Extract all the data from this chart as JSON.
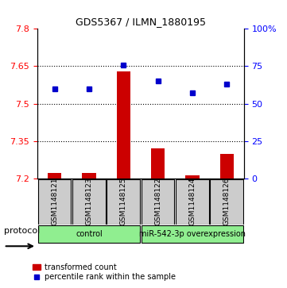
{
  "title": "GDS5367 / ILMN_1880195",
  "samples": [
    "GSM1148121",
    "GSM1148123",
    "GSM1148125",
    "GSM1148122",
    "GSM1148124",
    "GSM1148126"
  ],
  "red_values": [
    7.222,
    7.223,
    7.63,
    7.32,
    7.213,
    7.298
  ],
  "blue_values": [
    60,
    60,
    76,
    65,
    57,
    63
  ],
  "ylim_left": [
    7.2,
    7.8
  ],
  "ylim_right": [
    0,
    100
  ],
  "yticks_left": [
    7.2,
    7.35,
    7.5,
    7.65,
    7.8
  ],
  "yticks_right": [
    0,
    25,
    50,
    75,
    100
  ],
  "baseline": 7.2,
  "bar_color": "#CC0000",
  "dot_color": "#0000CC",
  "sample_box_color": "#CCCCCC",
  "protocol_label": "protocol",
  "legend_bar_label": "transformed count",
  "legend_dot_label": "percentile rank within the sample",
  "group_defs": [
    {
      "indices": [
        0,
        1,
        2
      ],
      "label": "control",
      "color": "#90EE90"
    },
    {
      "indices": [
        3,
        4,
        5
      ],
      "label": "miR-542-3p overexpression",
      "color": "#90EE90"
    }
  ]
}
